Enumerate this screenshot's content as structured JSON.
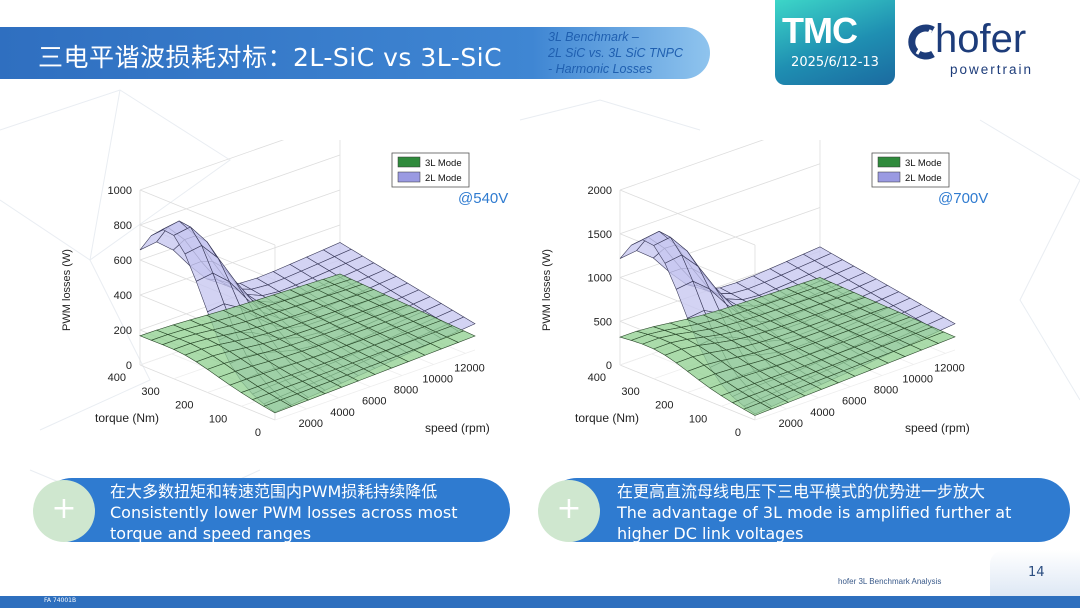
{
  "header": {
    "title": "三电平谐波损耗对标：2L-SiC vs 3L-SiC",
    "subtitle_lines": [
      "3L Benchmark –",
      "2L SiC vs. 3L SiC TNPC",
      "- Harmonic Losses"
    ]
  },
  "event": {
    "logo": "TMC",
    "date": "2025/6/12-13"
  },
  "brand": {
    "name": "hofer",
    "tagline": "powertrain",
    "color": "#1d3c7a"
  },
  "colors": {
    "accent": "#2f7bd0",
    "mode3l": "#2f8a3c",
    "mode2l": "#b8b8ec"
  },
  "chart_data": [
    {
      "type": "surface3d",
      "annotation": "@540V",
      "zlabel": "PWM losses (W)",
      "xlabel": "speed (rpm)",
      "ylabel": "torque (Nm)",
      "zticks": [
        "0",
        "200",
        "400",
        "600",
        "800",
        "1000"
      ],
      "xticks": [
        "2000",
        "4000",
        "6000",
        "8000",
        "10000",
        "12000"
      ],
      "yticks": [
        "0",
        "100",
        "200",
        "300",
        "400"
      ],
      "zlim": [
        0,
        1000
      ],
      "legend": {
        "position": "top",
        "entries": [
          "3L Mode",
          "2L Mode"
        ]
      },
      "series": [
        {
          "name": "3L Mode",
          "corner_values": {
            "low_speed_high_torque": 160,
            "low_speed_low_torque": 40,
            "high_speed_high_torque": 120,
            "high_speed_low_torque": 80,
            "peak": 170
          }
        },
        {
          "name": "2L Mode",
          "corner_values": {
            "low_speed_high_torque": 200,
            "low_speed_low_torque": 40,
            "high_speed_high_torque": 300,
            "high_speed_low_torque": 150,
            "peak": 860
          }
        }
      ]
    },
    {
      "type": "surface3d",
      "annotation": "@700V",
      "zlabel": "PWM losses (W)",
      "xlabel": "speed (rpm)",
      "ylabel": "torque (Nm)",
      "zticks": [
        "0",
        "500",
        "1000",
        "1500",
        "2000"
      ],
      "xticks": [
        "2000",
        "4000",
        "6000",
        "8000",
        "10000",
        "12000"
      ],
      "yticks": [
        "0",
        "100",
        "200",
        "300",
        "400"
      ],
      "zlim": [
        0,
        2000
      ],
      "legend": {
        "position": "top",
        "entries": [
          "3L Mode",
          "2L Mode"
        ]
      },
      "series": [
        {
          "name": "3L Mode",
          "corner_values": {
            "low_speed_high_torque": 250,
            "low_speed_low_torque": 50,
            "high_speed_high_torque": 200,
            "high_speed_low_torque": 150,
            "peak": 350
          }
        },
        {
          "name": "2L Mode",
          "corner_values": {
            "low_speed_high_torque": 350,
            "low_speed_low_torque": 60,
            "high_speed_high_torque": 550,
            "high_speed_low_torque": 300,
            "peak": 1600
          }
        }
      ]
    }
  ],
  "callouts": [
    {
      "icon": "+",
      "zh": "在大多数扭矩和转速范围内PWM损耗持续降低",
      "en1": "Consistently lower PWM losses across most",
      "en2": "torque and speed ranges"
    },
    {
      "icon": "+",
      "zh": "在更高直流母线电压下三电平模式的优势进一步放大",
      "en1": "The advantage of 3L mode is amplified further at",
      "en2": "higher DC link voltages"
    }
  ],
  "footer": {
    "note": "hofer 3L Benchmark Analysis",
    "page": "14",
    "code": "FA 74001B"
  }
}
